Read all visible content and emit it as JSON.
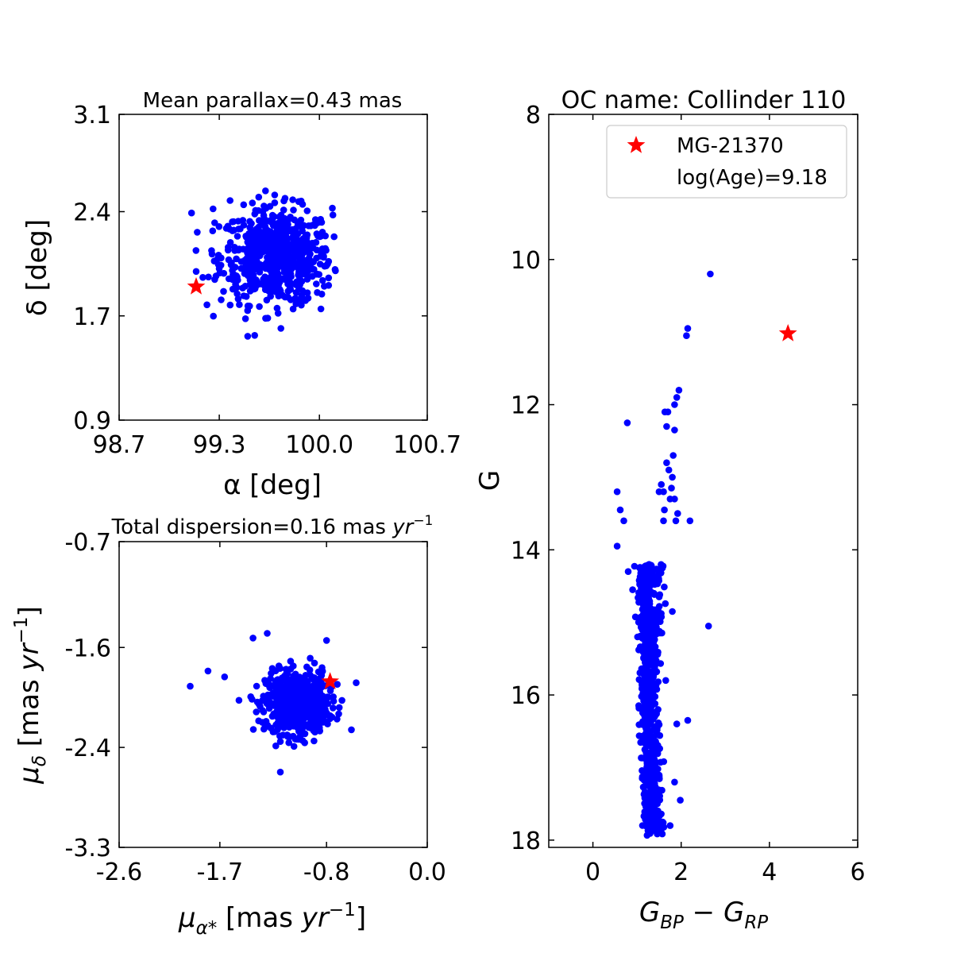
{
  "chart_data": [
    {
      "type": "scatter",
      "id": "sky",
      "title": "Mean parallax=0.43 mas",
      "xlabel": "α [deg]",
      "ylabel": "δ [deg]",
      "xlim": [
        98.7,
        100.7
      ],
      "ylim": [
        0.9,
        3.1
      ],
      "xticks": [
        "98.7",
        "99.3",
        "100.0",
        "100.7"
      ],
      "yticks": [
        "0.9",
        "1.7",
        "2.4",
        "3.1"
      ],
      "xtick_values": [
        98.7,
        99.35,
        100.0,
        100.7
      ],
      "ytick_values": [
        0.9,
        1.65,
        2.4,
        3.1
      ],
      "cluster_center": [
        99.72,
        2.08
      ],
      "cluster_spread": [
        0.18,
        0.17
      ],
      "members_color": "#0000ff",
      "outliers": [
        [
          99.17,
          2.39
        ],
        [
          99.31,
          2.42
        ],
        [
          99.32,
          2.32
        ],
        [
          99.3,
          2.12
        ],
        [
          99.28,
          1.93
        ],
        [
          99.2,
          1.97
        ],
        [
          99.27,
          1.73
        ],
        [
          99.52,
          1.63
        ],
        [
          99.58,
          1.51
        ],
        [
          99.75,
          1.56
        ],
        [
          99.98,
          1.88
        ],
        [
          100.03,
          2.13
        ],
        [
          100.06,
          1.87
        ],
        [
          99.97,
          2.3
        ],
        [
          99.88,
          2.34
        ],
        [
          99.65,
          2.55
        ],
        [
          99.71,
          2.52
        ],
        [
          99.42,
          2.48
        ],
        [
          100.01,
          1.7
        ],
        [
          99.91,
          1.76
        ]
      ],
      "target": {
        "name": "MG-21370",
        "x": 99.2,
        "y": 1.86,
        "color": "#ff0000"
      }
    },
    {
      "type": "scatter",
      "id": "pm",
      "title": "Total dispersion=0.16 mas",
      "title_unit": "yr",
      "title_exp": "−1",
      "xlabel_sym": "μ",
      "xlabel_sub": "α*",
      "xlabel_unit": " [mas ",
      "xlabel_yr": "yr",
      "xlabel_exp": "−1",
      "xlabel_close": "]",
      "ylabel_sym": "μ",
      "ylabel_sub": "δ",
      "ylabel_unit": " [mas ",
      "ylabel_yr": "yr",
      "ylabel_exp": "−1",
      "ylabel_close": "]",
      "xlim": [
        -2.6,
        0.0
      ],
      "ylim": [
        -3.3,
        -0.7
      ],
      "xticks": [
        "-2.6",
        "-1.7",
        "-0.8",
        "0.0"
      ],
      "yticks": [
        "-3.3",
        "-2.4",
        "-1.6",
        "-0.7"
      ],
      "xtick_values": [
        -2.6,
        -1.75,
        -0.85,
        0.0
      ],
      "ytick_values": [
        -3.3,
        -2.45,
        -1.6,
        -0.7
      ],
      "cluster_center": [
        -1.1,
        -2.07
      ],
      "cluster_spread": [
        0.13,
        0.13
      ],
      "members_color": "#0000ff",
      "outliers": [
        [
          -2.0,
          -1.93
        ],
        [
          -1.85,
          -1.8
        ],
        [
          -1.71,
          -1.85
        ],
        [
          -1.35,
          -1.48
        ],
        [
          -1.47,
          -1.52
        ],
        [
          -0.85,
          -1.54
        ],
        [
          -0.6,
          -1.9
        ],
        [
          -0.72,
          -2.05
        ],
        [
          -0.64,
          -2.3
        ],
        [
          -1.24,
          -2.66
        ],
        [
          -1.37,
          -2.28
        ],
        [
          -1.24,
          -2.4
        ],
        [
          -0.91,
          -2.3
        ],
        [
          -0.82,
          -2.18
        ]
      ],
      "target": {
        "name": "MG-21370",
        "x": -0.82,
        "y": -1.89,
        "color": "#ff0000"
      }
    },
    {
      "type": "scatter",
      "id": "cmd",
      "title": "OC name: Collinder 110",
      "xlabel_g": "G",
      "xlabel_bp": "BP",
      "xlabel_minus": " − ",
      "xlabel_rp": "RP",
      "ylabel": "G",
      "xlim": [
        -1,
        6
      ],
      "ylim": [
        18.1,
        8
      ],
      "xticks": [
        "0",
        "2",
        "4",
        "6"
      ],
      "yticks": [
        "8",
        "10",
        "12",
        "14",
        "16",
        "18"
      ],
      "xtick_values": [
        0,
        2,
        4,
        6
      ],
      "ytick_values": [
        8,
        10,
        12,
        14,
        16,
        18
      ],
      "members_color": "#0000ff",
      "red_clump": [
        [
          2.66,
          10.2
        ],
        [
          2.15,
          10.95
        ],
        [
          2.12,
          11.05
        ],
        [
          1.95,
          11.8
        ],
        [
          1.9,
          11.9
        ],
        [
          1.85,
          12.0
        ],
        [
          1.7,
          12.1
        ],
        [
          1.67,
          12.3
        ],
        [
          1.63,
          12.1
        ],
        [
          1.85,
          12.35
        ],
        [
          0.78,
          12.25
        ],
        [
          1.82,
          12.7
        ],
        [
          1.8,
          13.0
        ],
        [
          1.75,
          13.3
        ],
        [
          1.6,
          13.2
        ],
        [
          1.55,
          13.1
        ],
        [
          1.67,
          12.8
        ],
        [
          1.92,
          13.5
        ],
        [
          1.88,
          13.6
        ],
        [
          2.2,
          13.6
        ],
        [
          1.6,
          13.6
        ],
        [
          1.85,
          13.3
        ],
        [
          1.72,
          12.9
        ],
        [
          1.5,
          13.2
        ],
        [
          1.62,
          13.45
        ],
        [
          1.78,
          13.15
        ]
      ],
      "blue_stragglers": [
        [
          0.55,
          13.2
        ],
        [
          0.62,
          13.45
        ],
        [
          0.7,
          13.6
        ],
        [
          0.55,
          13.95
        ],
        [
          0.8,
          14.3
        ],
        [
          0.9,
          14.55
        ],
        [
          2.62,
          15.05
        ],
        [
          1.8,
          14.85
        ]
      ],
      "ms_top": 14.2,
      "ms_bottom": 17.95,
      "target": {
        "name": "MG-21370",
        "x": 4.42,
        "y": 11.02,
        "color": "#ff0000"
      },
      "legend": {
        "marker_label": "MG-21370",
        "age_label": "log(Age)=9.18",
        "position": "top-right"
      }
    }
  ]
}
